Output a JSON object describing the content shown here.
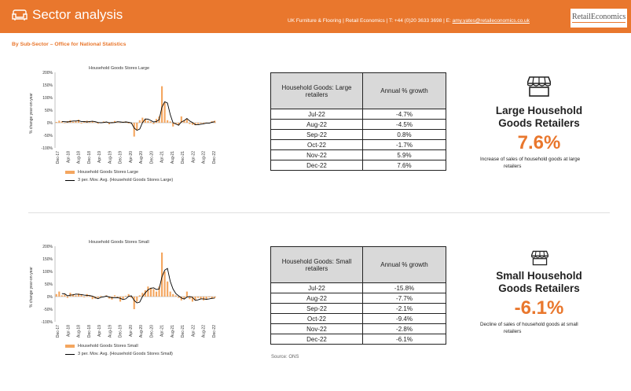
{
  "header": {
    "title": "Sector analysis",
    "contact_prefix": "UK Furniture & Flooring | Retail Economics | T: +44 (0)20 3633 3698 | E: ",
    "email": "amy.yates@retaileconomics.co.uk",
    "logo_text": "RetailEconomics",
    "bg_color": "#e9772d",
    "icon": "sofa-icon"
  },
  "subtitle": "By Sub-Sector – Office for National Statistics",
  "sections": [
    {
      "table_header": "Household Goods: Large retailers",
      "growth_header": "Annual % growth",
      "rows": [
        {
          "month": "Jul-22",
          "value": "-4.7%"
        },
        {
          "month": "Aug-22",
          "value": "-4.5%"
        },
        {
          "month": "Sep-22",
          "value": "0.8%"
        },
        {
          "month": "Oct-22",
          "value": "-1.7%"
        },
        {
          "month": "Nov-22",
          "value": "5.9%"
        },
        {
          "month": "Dec-22",
          "value": "7.6%"
        }
      ],
      "kpi_title_line1": "Large Household",
      "kpi_title_line2": "Goods Retailers",
      "kpi_value": "7.6%",
      "kpi_desc_line1": "Increase of sales of household goods at large",
      "kpi_desc_line2": "retailers",
      "icon": "store-icon"
    },
    {
      "table_header": "Household Goods: Small retailers",
      "growth_header": "Annual % growth",
      "rows": [
        {
          "month": "Jul-22",
          "value": "-15.8%"
        },
        {
          "month": "Aug-22",
          "value": "-7.7%"
        },
        {
          "month": "Sep-22",
          "value": "-2.1%"
        },
        {
          "month": "Oct-22",
          "value": "-9.4%"
        },
        {
          "month": "Nov-22",
          "value": "-2.8%"
        },
        {
          "month": "Dec-22",
          "value": "-6.1%"
        }
      ],
      "kpi_title_line1": "Small Household",
      "kpi_title_line2": "Goods Retailers",
      "kpi_value": "-6.1%",
      "kpi_desc_line1": "Decline of sales of household goods at small",
      "kpi_desc_line2": "retailers",
      "icon": "store-icon"
    }
  ],
  "source": "Source: ONS",
  "chart_data": [
    {
      "type": "bar",
      "title": "Household Goods Stores Large",
      "ylabel": "% change year-on-year",
      "ylim": [
        -100,
        200
      ],
      "yticks": [
        "200%",
        "150%",
        "100%",
        "50%",
        "0%",
        "-50%",
        "-100%"
      ],
      "xticks": [
        "Dec-17",
        "Apr-18",
        "Aug-18",
        "Dec-18",
        "Apr-19",
        "Aug-19",
        "Dec-19",
        "Apr-20",
        "Aug-20",
        "Dec-20",
        "Apr-21",
        "Aug-21",
        "Dec-21",
        "Apr-22",
        "Aug-22",
        "Dec-22"
      ],
      "bar_color": "#f4a65f",
      "line_color": "#000000",
      "series": [
        {
          "name": "Household Goods Stores Large",
          "kind": "bar",
          "values": [
            3,
            8,
            5,
            -2,
            6,
            10,
            4,
            7,
            12,
            -3,
            5,
            8,
            3,
            6,
            2,
            -4,
            1,
            5,
            2,
            -6,
            3,
            7,
            2,
            -1,
            4,
            5,
            -3,
            -4,
            -55,
            -30,
            10,
            20,
            15,
            8,
            5,
            -5,
            15,
            25,
            145,
            80,
            10,
            5,
            -15,
            -5,
            -10,
            25,
            10,
            15,
            -5,
            -8,
            -10,
            -5,
            -3,
            -4,
            1,
            -2,
            6,
            8
          ]
        },
        {
          "name": "3 per. Mov. Avg. (Household Goods Stores Large)",
          "kind": "line",
          "values": [
            null,
            null,
            5,
            4,
            3,
            5,
            7,
            7,
            8,
            5,
            5,
            3,
            5,
            6,
            4,
            1,
            0,
            1,
            3,
            0,
            0,
            1,
            4,
            3,
            2,
            3,
            2,
            -1,
            -21,
            -30,
            -25,
            0,
            15,
            14,
            9,
            3,
            5,
            12,
            62,
            83,
            78,
            32,
            0,
            -5,
            -10,
            3,
            8,
            17,
            7,
            1,
            -8,
            -8,
            -6,
            -4,
            -2,
            -2,
            2,
            4
          ]
        }
      ]
    },
    {
      "type": "bar",
      "title": "Household Goods Stores Small",
      "ylabel": "% change year-on-year",
      "ylim": [
        -100,
        200
      ],
      "yticks": [
        "200%",
        "150%",
        "100%",
        "50%",
        "0%",
        "-50%",
        "-100%"
      ],
      "xticks": [
        "Dec-17",
        "Apr-18",
        "Aug-18",
        "Dec-18",
        "Apr-19",
        "Aug-19",
        "Dec-19",
        "Apr-20",
        "Aug-20",
        "Dec-20",
        "Apr-21",
        "Aug-21",
        "Dec-21",
        "Apr-22",
        "Aug-22",
        "Dec-22"
      ],
      "bar_color": "#f4a65f",
      "line_color": "#000000",
      "series": [
        {
          "name": "Household Goods Stores Small",
          "kind": "bar",
          "values": [
            10,
            20,
            5,
            8,
            -5,
            15,
            10,
            5,
            12,
            8,
            -3,
            10,
            5,
            -10,
            -8,
            -5,
            3,
            -2,
            5,
            -8,
            -12,
            5,
            -6,
            -20,
            -10,
            3,
            10,
            -5,
            -50,
            -20,
            5,
            15,
            25,
            40,
            35,
            30,
            20,
            40,
            175,
            100,
            60,
            20,
            10,
            5,
            -5,
            -15,
            -10,
            20,
            -10,
            -20,
            -15,
            -5,
            -8,
            -15,
            -10,
            -3,
            -9,
            -6
          ]
        },
        {
          "name": "3 per. Mov. Avg. (Household Goods Stores Small)",
          "kind": "line",
          "values": [
            null,
            null,
            12,
            11,
            3,
            6,
            7,
            10,
            9,
            8,
            6,
            5,
            4,
            2,
            -4,
            -8,
            -3,
            -1,
            2,
            -2,
            -5,
            -5,
            -4,
            -7,
            -12,
            -9,
            1,
            3,
            -15,
            -25,
            -22,
            0,
            15,
            27,
            33,
            35,
            28,
            30,
            78,
            105,
            112,
            60,
            30,
            12,
            3,
            -5,
            -10,
            -2,
            0,
            -3,
            -15,
            -13,
            -9,
            -9,
            -11,
            -9,
            -7,
            -6
          ]
        }
      ]
    }
  ]
}
